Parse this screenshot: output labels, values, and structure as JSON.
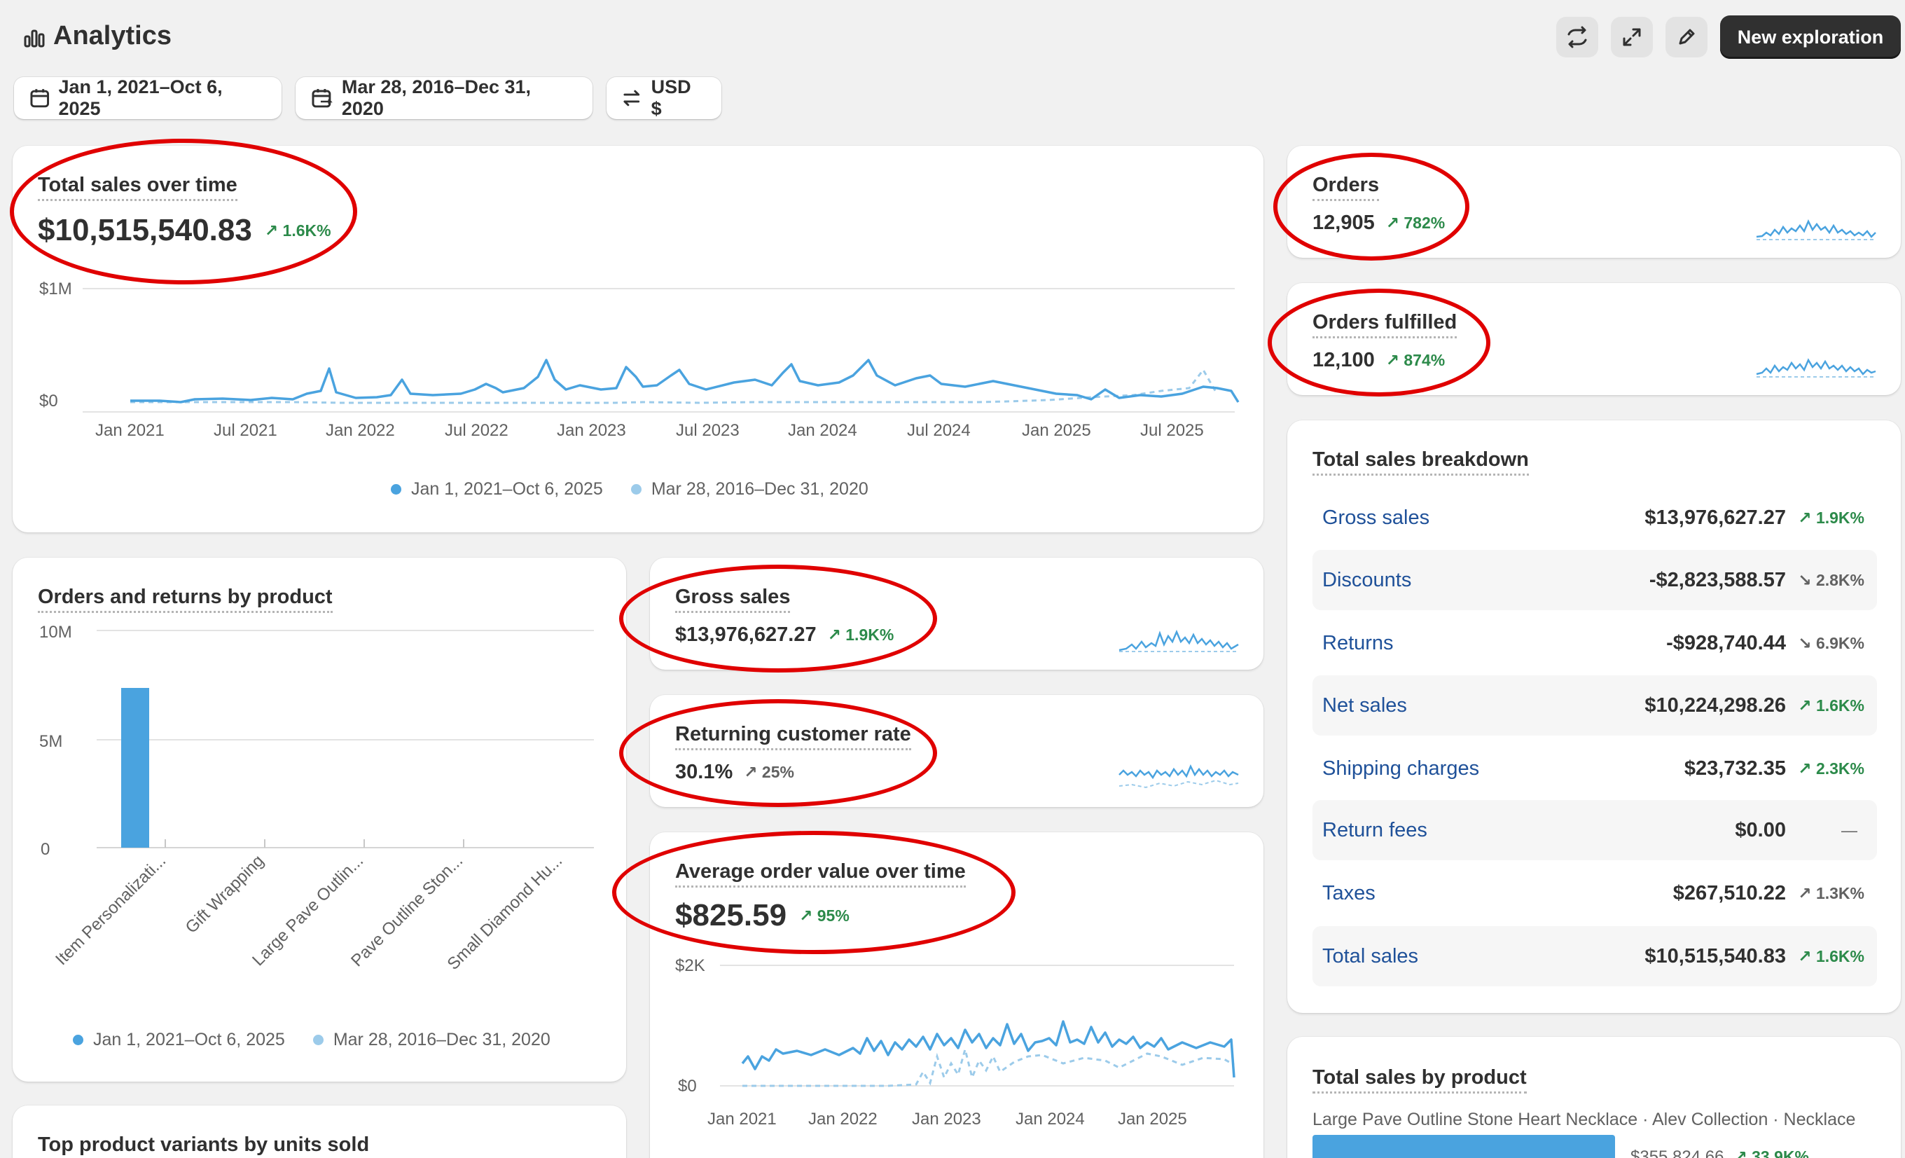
{
  "header": {
    "title": "Analytics",
    "new_exploration": "New exploration"
  },
  "filters": {
    "date_range": "Jan 1, 2021–Oct 6, 2025",
    "compare_range": "Mar 28, 2016–Dec 31, 2020",
    "currency": "USD $"
  },
  "total_sales": {
    "title": "Total sales over time",
    "value": "$10,515,540.83",
    "trend": "1.6K%",
    "y_ticks": [
      "$1M",
      "$0"
    ],
    "x_ticks": [
      "Jan 2021",
      "Jul 2021",
      "Jan 2022",
      "Jul 2022",
      "Jan 2023",
      "Jul 2023",
      "Jan 2024",
      "Jul 2024",
      "Jan 2025",
      "Jul 2025"
    ],
    "legend": [
      "Jan 1, 2021–Oct 6, 2025",
      "Mar 28, 2016–Dec 31, 2020"
    ]
  },
  "orders": {
    "title": "Orders",
    "value": "12,905",
    "trend": "782%"
  },
  "orders_fulfilled": {
    "title": "Orders fulfilled",
    "value": "12,100",
    "trend": "874%"
  },
  "gross_sales": {
    "title": "Gross sales",
    "value": "$13,976,627.27",
    "trend": "1.9K%"
  },
  "returning_rate": {
    "title": "Returning customer rate",
    "value": "30.1%",
    "trend": "25%"
  },
  "aov": {
    "title": "Average order value over time",
    "value": "$825.59",
    "trend": "95%",
    "y_ticks": [
      "$2K",
      "$0"
    ],
    "x_ticks": [
      "Jan 2021",
      "Jan 2022",
      "Jan 2023",
      "Jan 2024",
      "Jan 2025"
    ]
  },
  "orders_returns": {
    "title": "Orders and returns by product",
    "y_ticks": [
      "10M",
      "5M",
      "0"
    ],
    "categories": [
      "Item Personalizati...",
      "Gift Wrapping",
      "Large Pave Outlin...",
      "Pave Outline Ston...",
      "Small Diamond Hu..."
    ],
    "legend": [
      "Jan 1, 2021–Oct 6, 2025",
      "Mar 28, 2016–Dec 31, 2020"
    ]
  },
  "top_variants": {
    "title": "Top product variants by units sold"
  },
  "breakdown": {
    "title": "Total sales breakdown",
    "rows": [
      {
        "label": "Gross sales",
        "value": "$13,976,627.27",
        "trend": "1.9K%",
        "dir": "up"
      },
      {
        "label": "Discounts",
        "value": "-$2,823,588.57",
        "trend": "2.8K%",
        "dir": "down"
      },
      {
        "label": "Returns",
        "value": "-$928,740.44",
        "trend": "6.9K%",
        "dir": "down"
      },
      {
        "label": "Net sales",
        "value": "$10,224,298.26",
        "trend": "1.6K%",
        "dir": "up"
      },
      {
        "label": "Shipping charges",
        "value": "$23,732.35",
        "trend": "2.3K%",
        "dir": "up"
      },
      {
        "label": "Return fees",
        "value": "$0.00",
        "trend": "—",
        "dir": "none"
      },
      {
        "label": "Taxes",
        "value": "$267,510.22",
        "trend": "1.3K%",
        "dir": "neutral"
      },
      {
        "label": "Total sales",
        "value": "$10,515,540.83",
        "trend": "1.6K%",
        "dir": "up"
      }
    ]
  },
  "sales_by_product": {
    "title": "Total sales by product",
    "first_item": "Large Pave Outline Stone Heart Necklace · Alev Collection · Necklace",
    "first_value": "$355,824.66",
    "first_trend": "33.9K%"
  },
  "colors": {
    "primary_series": "#4aa3df",
    "compare_series": "#9ccbea",
    "annotation_ring": "#e00000",
    "link_blue": "#1f5199",
    "trend_green": "#2c8a4a"
  }
}
